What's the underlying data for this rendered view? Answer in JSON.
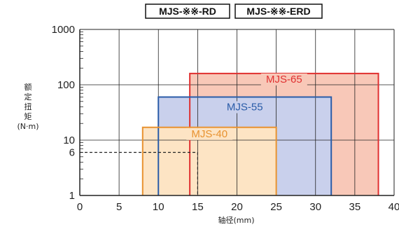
{
  "chart_data": {
    "type": "area",
    "header_labels": [
      "MJS-※※-RD",
      "MJS-※※-ERD"
    ],
    "xlabel": "轴径(mm)",
    "ylabel": [
      "额",
      "定",
      "扭",
      "矩",
      "(N·m)"
    ],
    "x_ticks": [
      "0",
      "5",
      "10",
      "15",
      "20",
      "25",
      "30",
      "35",
      "40"
    ],
    "y_ticks": [
      "1",
      "6",
      "10",
      "100",
      "1000"
    ],
    "xlim": [
      0,
      40
    ],
    "ylim": [
      1,
      1000
    ],
    "y_scale": "log",
    "grid": true,
    "series": [
      {
        "name": "MJS-65",
        "x_range": [
          14,
          38
        ],
        "y_max": 160,
        "color": "#e03030",
        "fill": "#f8c8b8"
      },
      {
        "name": "MJS-55",
        "x_range": [
          10,
          32
        ],
        "y_max": 60,
        "color": "#2a5ca8",
        "fill": "#c9d0ec"
      },
      {
        "name": "MJS-40",
        "x_range": [
          8,
          25
        ],
        "y_max": 17,
        "color": "#e89230",
        "fill": "#fde4c4"
      }
    ],
    "annotation": {
      "x": 15,
      "y": 6,
      "style": "dashed"
    }
  }
}
